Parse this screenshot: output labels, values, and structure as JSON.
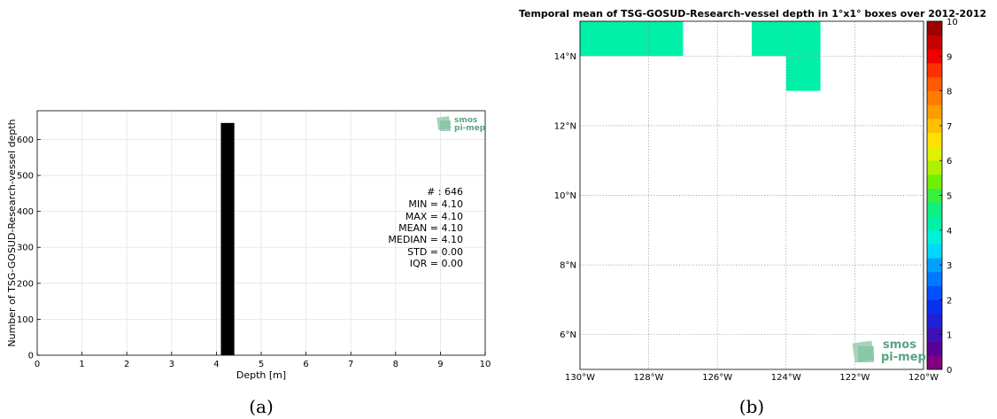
{
  "chart_data": [
    {
      "type": "bar",
      "xlabel": "Depth [m]",
      "ylabel": "Number of TSG-GOSUD-Research-vessel depth",
      "xlim": [
        0,
        10
      ],
      "ylim": [
        0,
        680
      ],
      "x_ticks": [
        "0",
        "1",
        "2",
        "3",
        "4",
        "5",
        "6",
        "7",
        "8",
        "9",
        "10"
      ],
      "y_ticks": [
        "0",
        "100",
        "200",
        "300",
        "400",
        "500",
        "600"
      ],
      "bins": [
        {
          "x0": 4.1,
          "x1": 4.4,
          "count": 646
        }
      ],
      "grid": true,
      "stats": [
        "# : 646",
        "MIN = 4.10",
        "MAX =  4.10",
        "MEAN = 4.10",
        "MEDIAN = 4.10",
        "STD = 0.00",
        "IQR = 0.00"
      ],
      "logo": [
        "smos",
        "pi-mep"
      ],
      "caption": "(a)"
    },
    {
      "type": "heatmap",
      "title": "Temporal mean of TSG-GOSUD-Research-vessel depth in 1°x1° boxes over 2012-2012",
      "lon_range": [
        -130,
        -120
      ],
      "lat_range": [
        5,
        15
      ],
      "x_ticks": [
        "130°W",
        "128°W",
        "126°W",
        "124°W",
        "122°W",
        "120°W"
      ],
      "y_ticks": [
        "6°N",
        "8°N",
        "10°N",
        "12°N",
        "14°N"
      ],
      "cells": [
        {
          "lon0": -130,
          "lon1": -127,
          "lat0": 14,
          "lat1": 15,
          "value": 4.1
        },
        {
          "lon0": -125,
          "lon1": -123,
          "lat0": 14,
          "lat1": 15,
          "value": 4.1
        },
        {
          "lon0": -124,
          "lon1": -123,
          "lat0": 13,
          "lat1": 14,
          "value": 4.1
        }
      ],
      "colorbar": {
        "min": 0,
        "max": 10,
        "ticks": [
          "0",
          "1",
          "2",
          "3",
          "4",
          "5",
          "6",
          "7",
          "8",
          "9",
          "10"
        ],
        "colors": [
          "#7f007f",
          "#5a0099",
          "#3d10b8",
          "#2020d8",
          "#0a30f0",
          "#0050ff",
          "#0078ff",
          "#00a0ff",
          "#00d8ff",
          "#00f0d8",
          "#00f0a8",
          "#10f080",
          "#38f040",
          "#70f000",
          "#b0f000",
          "#e0f000",
          "#ffe000",
          "#ffc000",
          "#ff9c00",
          "#ff7c00",
          "#ff5a00",
          "#ff3000",
          "#f00000",
          "#c80000",
          "#9c0000"
        ]
      },
      "grid": true,
      "logo": [
        "smos",
        "pi-mep"
      ],
      "caption": "(b)"
    }
  ]
}
